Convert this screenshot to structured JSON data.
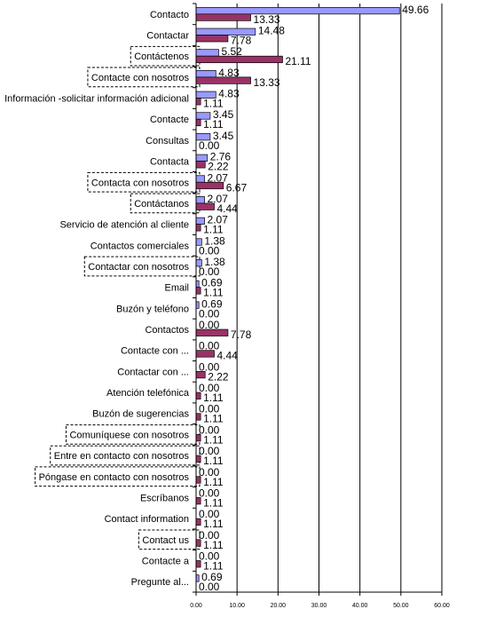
{
  "chart_data": {
    "type": "bar",
    "orientation": "horizontal",
    "categories": [
      "Contacto",
      "Contactar",
      "Contáctenos",
      "Contacte con nosotros",
      "Información -solicitar información adicional",
      "Contacte",
      "Consultas",
      "Contacta",
      "Contacta con nosotros",
      "Contáctanos",
      "Servicio de atención al cliente",
      "Contactos comerciales",
      "Contactar con nosotros",
      "Email",
      "Buzón y teléfono",
      "Contactos",
      "Contacte con ...",
      "Contactar con ...",
      "Atención telefónica",
      "Buzón de sugerencias",
      "Comuníquese con nosotros",
      "Entre en contacto con nosotros",
      "Póngase en contacto con nosotros",
      "Escríbanos",
      "Contact information",
      "Contact us",
      "Contacte a",
      "Pregunte al..."
    ],
    "boxed_categories": [
      2,
      3,
      8,
      9,
      12,
      20,
      21,
      22,
      25
    ],
    "series": [
      {
        "color": "#9999ff",
        "values": [
          49.66,
          14.48,
          5.52,
          4.83,
          4.83,
          3.45,
          3.45,
          2.76,
          2.07,
          2.07,
          2.07,
          1.38,
          1.38,
          0.69,
          0.69,
          0.0,
          0.0,
          0.0,
          0.0,
          0.0,
          0.0,
          0.0,
          0.0,
          0.0,
          0.0,
          0.0,
          0.0,
          0.69
        ],
        "labels": [
          "49.66",
          "14.48",
          "5.52",
          "4.83",
          "4.83",
          "3.45",
          "3.45",
          "2.76",
          "2.07",
          "2.07",
          "2.07",
          "1.38",
          "1.38",
          "0.69",
          "0.69",
          "0.00",
          "0.00",
          "0.00",
          "0.00",
          "0.00",
          "0.00",
          "0.00",
          "0.00",
          "0.00",
          "0.00",
          "0.00",
          "0.00",
          "0.69"
        ]
      },
      {
        "color": "#993366",
        "values": [
          13.33,
          7.78,
          21.11,
          13.33,
          1.11,
          1.11,
          0.0,
          2.22,
          6.67,
          4.44,
          1.11,
          0.0,
          0.0,
          1.11,
          0.0,
          7.78,
          4.44,
          2.22,
          1.11,
          1.11,
          1.11,
          1.11,
          1.11,
          1.11,
          1.11,
          1.11,
          1.11,
          0.0
        ],
        "labels": [
          "13.33",
          "7.78",
          "21.11",
          "13.33",
          "1.11",
          "1.11",
          "0.00",
          "2.22",
          "6.67",
          "4.44",
          "1.11",
          "0.00",
          "0.00",
          "1.11",
          "0.00",
          "7.78",
          "4.44",
          "2.22",
          "1.11",
          "1.11",
          "1.11",
          "1.11",
          "1.11",
          "1.11",
          "1.11",
          "1.11",
          "1.11",
          "0.00"
        ]
      }
    ],
    "xlim": [
      0,
      60
    ],
    "xticks": [
      "0.00",
      "10.00",
      "20.00",
      "30.00",
      "40.00",
      "50.00",
      "60.00"
    ],
    "grid": "vertical",
    "title": "",
    "xlabel": "",
    "ylabel": ""
  }
}
